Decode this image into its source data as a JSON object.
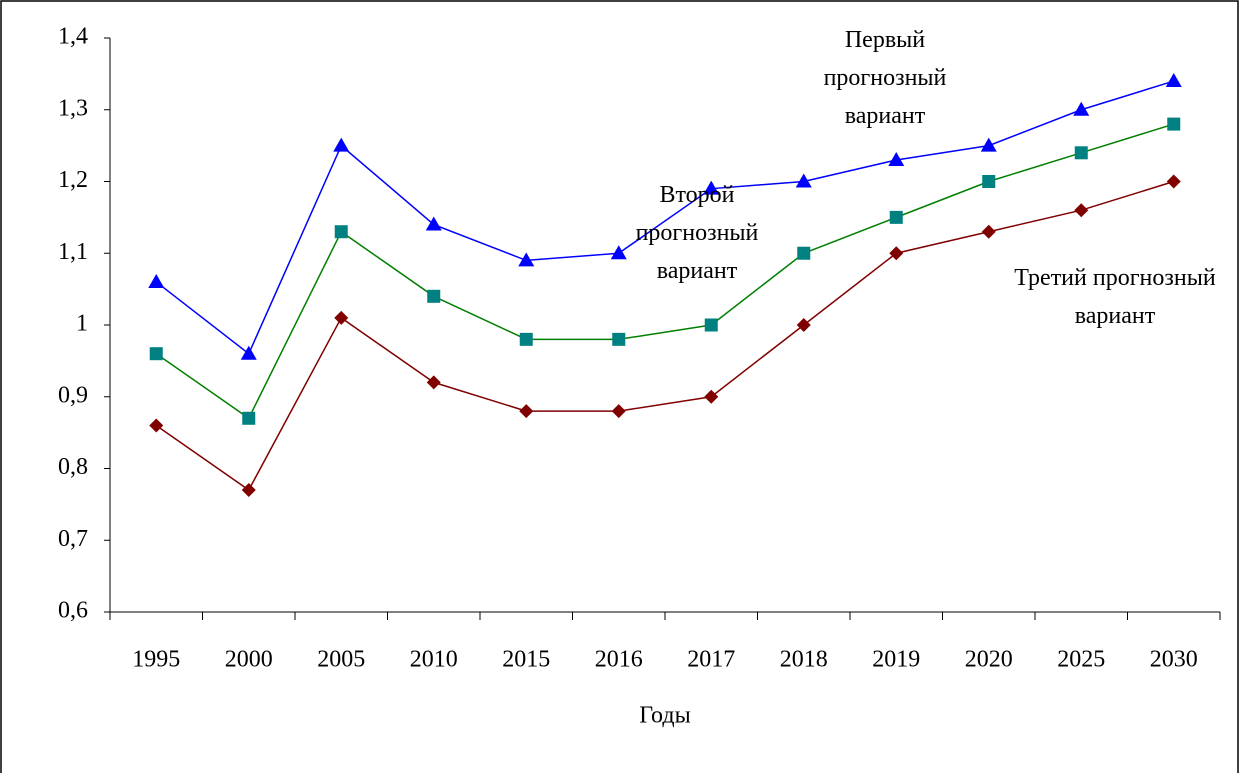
{
  "chart_data": {
    "type": "line",
    "x_label": "Годы",
    "categories": [
      "1995",
      "2000",
      "2005",
      "2010",
      "2015",
      "2016",
      "2017",
      "2018",
      "2019",
      "2020",
      "2025",
      "2030"
    ],
    "series": [
      {
        "name": "Первый прогнозный вариант",
        "color": "#0000ff",
        "marker_color": "#0000ff",
        "marker": "triangle",
        "values": [
          1.06,
          0.96,
          1.25,
          1.14,
          1.09,
          1.1,
          1.19,
          1.2,
          1.23,
          1.25,
          1.3,
          1.34
        ]
      },
      {
        "name": "Второй прогнозный вариант",
        "color": "#008000",
        "marker_color": "#008080",
        "marker": "square",
        "values": [
          0.96,
          0.87,
          1.13,
          1.04,
          0.98,
          0.98,
          1.0,
          1.1,
          1.15,
          1.2,
          1.24,
          1.28
        ]
      },
      {
        "name": "Третий прогнозный вариант",
        "color": "#800000",
        "marker_color": "#800000",
        "marker": "diamond",
        "values": [
          0.86,
          0.77,
          1.01,
          0.92,
          0.88,
          0.88,
          0.9,
          1.0,
          1.1,
          1.13,
          1.16,
          1.2
        ]
      }
    ],
    "ylim": [
      0.6,
      1.4
    ],
    "yticks": [
      {
        "value": 0.6,
        "label": "0,6"
      },
      {
        "value": 0.7,
        "label": "0,7"
      },
      {
        "value": 0.8,
        "label": "0,8"
      },
      {
        "value": 0.9,
        "label": "0,9"
      },
      1,
      {
        "value": 1.1,
        "label": "1,1"
      },
      {
        "value": 1.2,
        "label": "1,2"
      },
      {
        "value": 1.3,
        "label": "1,3"
      },
      {
        "value": 1.4,
        "label": "1,4"
      }
    ],
    "grid": false
  }
}
